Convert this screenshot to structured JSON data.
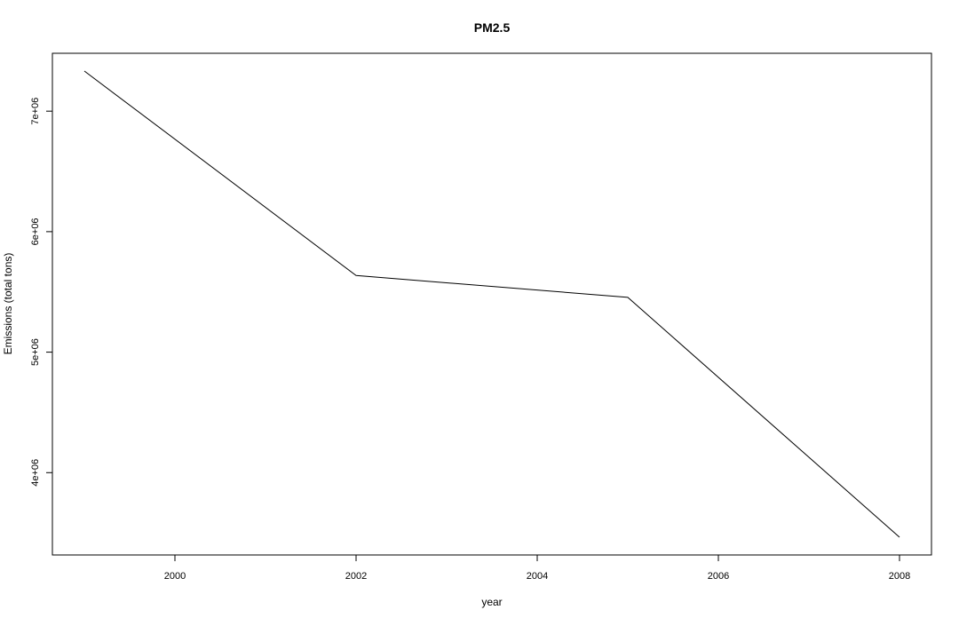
{
  "chart_data": {
    "type": "line",
    "title": "PM2.5",
    "xlabel": "year",
    "ylabel": "Emissions (total tons)",
    "x": [
      1999,
      2002,
      2005,
      2008
    ],
    "series": [
      {
        "values": [
          7332967,
          5635780,
          5454703,
          3464206
        ]
      }
    ],
    "xlim": [
      1999,
      2008
    ],
    "ylim": [
      3464206,
      7332967
    ],
    "x_ticks": [
      2000,
      2002,
      2004,
      2006,
      2008
    ],
    "x_tick_labels": [
      "2000",
      "2002",
      "2004",
      "2006",
      "2008"
    ],
    "y_ticks": [
      4000000,
      5000000,
      6000000,
      7000000
    ],
    "y_tick_labels": [
      "4e+06",
      "5e+06",
      "6e+06",
      "7e+06"
    ],
    "grid": false,
    "legend": "none",
    "line_color": "#000000"
  }
}
